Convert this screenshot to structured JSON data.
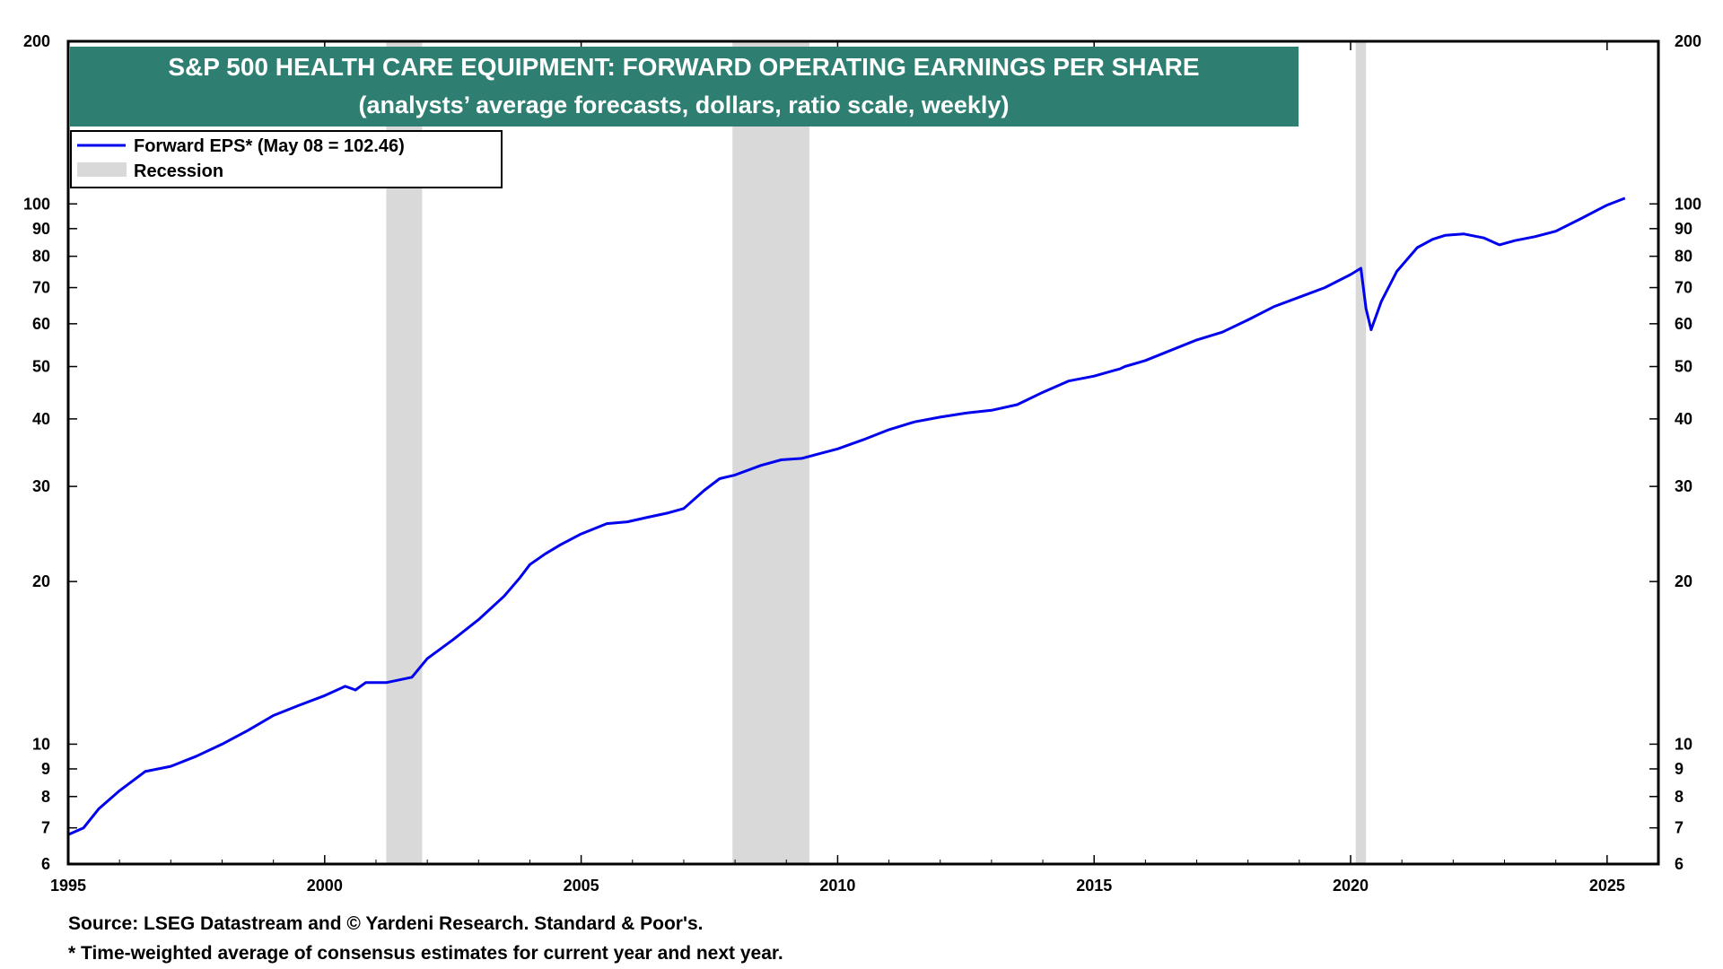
{
  "footnotes": {
    "source": "Source: LSEG Datastream and © Yardeni Research. Standard & Poor's.",
    "note": "* Time-weighted average of consensus estimates for current year and next year."
  },
  "chart_data": {
    "type": "line",
    "title": "S&P 500 HEALTH CARE EQUIPMENT: FORWARD OPERATING EARNINGS PER SHARE",
    "subtitle": "(analysts’ average forecasts, dollars, ratio scale, weekly)",
    "xlabel": "",
    "ylabel": "",
    "scale": "log",
    "xlim": [
      1995,
      2026
    ],
    "ylim": [
      6,
      200
    ],
    "x_ticks": [
      1995,
      2000,
      2005,
      2010,
      2015,
      2020,
      2025
    ],
    "y_ticks": [
      6,
      7,
      8,
      9,
      10,
      20,
      30,
      40,
      50,
      60,
      70,
      80,
      90,
      100,
      200
    ],
    "grid": false,
    "legend_position": "top-left",
    "colors": {
      "line": "#0000ee",
      "recession": "#d9d9d9",
      "title_bg": "#2e7f72"
    },
    "legend": [
      {
        "label": "Forward EPS* (May 08 = 102.46)",
        "kind": "line"
      },
      {
        "label": "Recession",
        "kind": "band"
      }
    ],
    "recessions": [
      {
        "start": 2001.2,
        "end": 2001.9
      },
      {
        "start": 2007.95,
        "end": 2009.45
      },
      {
        "start": 2020.1,
        "end": 2020.3
      }
    ],
    "series": [
      {
        "name": "Forward EPS*",
        "x": [
          1995.0,
          1995.3,
          1995.6,
          1996.0,
          1996.5,
          1997.0,
          1997.5,
          1998.0,
          1998.5,
          1999.0,
          1999.5,
          2000.0,
          2000.4,
          2000.6,
          2000.8,
          2001.2,
          2001.7,
          2002.0,
          2002.5,
          2003.0,
          2003.5,
          2003.8,
          2004.0,
          2004.3,
          2004.6,
          2005.0,
          2005.5,
          2005.9,
          2006.3,
          2006.7,
          2007.0,
          2007.4,
          2007.7,
          2008.0,
          2008.5,
          2008.9,
          2009.3,
          2009.7,
          2010.0,
          2010.5,
          2011.0,
          2011.5,
          2012.0,
          2012.5,
          2013.0,
          2013.5,
          2014.0,
          2014.5,
          2015.0,
          2015.4,
          2015.5,
          2015.6,
          2016.0,
          2016.5,
          2017.0,
          2017.5,
          2018.0,
          2018.5,
          2019.0,
          2019.5,
          2020.0,
          2020.2,
          2020.3,
          2020.4,
          2020.6,
          2020.9,
          2021.3,
          2021.6,
          2021.85,
          2022.2,
          2022.6,
          2022.9,
          2023.2,
          2023.6,
          2024.0,
          2024.5,
          2025.0,
          2025.35
        ],
        "values": [
          6.8,
          7.0,
          7.6,
          8.2,
          8.9,
          9.1,
          9.5,
          10.0,
          10.6,
          11.3,
          11.8,
          12.3,
          12.8,
          12.6,
          13.0,
          13.0,
          13.3,
          14.4,
          15.6,
          17.0,
          18.8,
          20.3,
          21.5,
          22.5,
          23.4,
          24.5,
          25.6,
          25.8,
          26.3,
          26.8,
          27.3,
          29.5,
          31.0,
          31.5,
          32.8,
          33.6,
          33.8,
          34.6,
          35.2,
          36.6,
          38.2,
          39.5,
          40.3,
          41.0,
          41.5,
          42.5,
          44.8,
          47.0,
          48.0,
          49.2,
          49.5,
          50.0,
          51.3,
          53.6,
          56.0,
          57.9,
          61.0,
          64.5,
          67.2,
          70.0,
          74.0,
          76.0,
          64.0,
          58.5,
          66.0,
          75.0,
          83.0,
          86.0,
          87.5,
          88.0,
          86.5,
          84.0,
          85.5,
          87.0,
          89.0,
          94.0,
          99.5,
          102.46
        ]
      }
    ]
  }
}
